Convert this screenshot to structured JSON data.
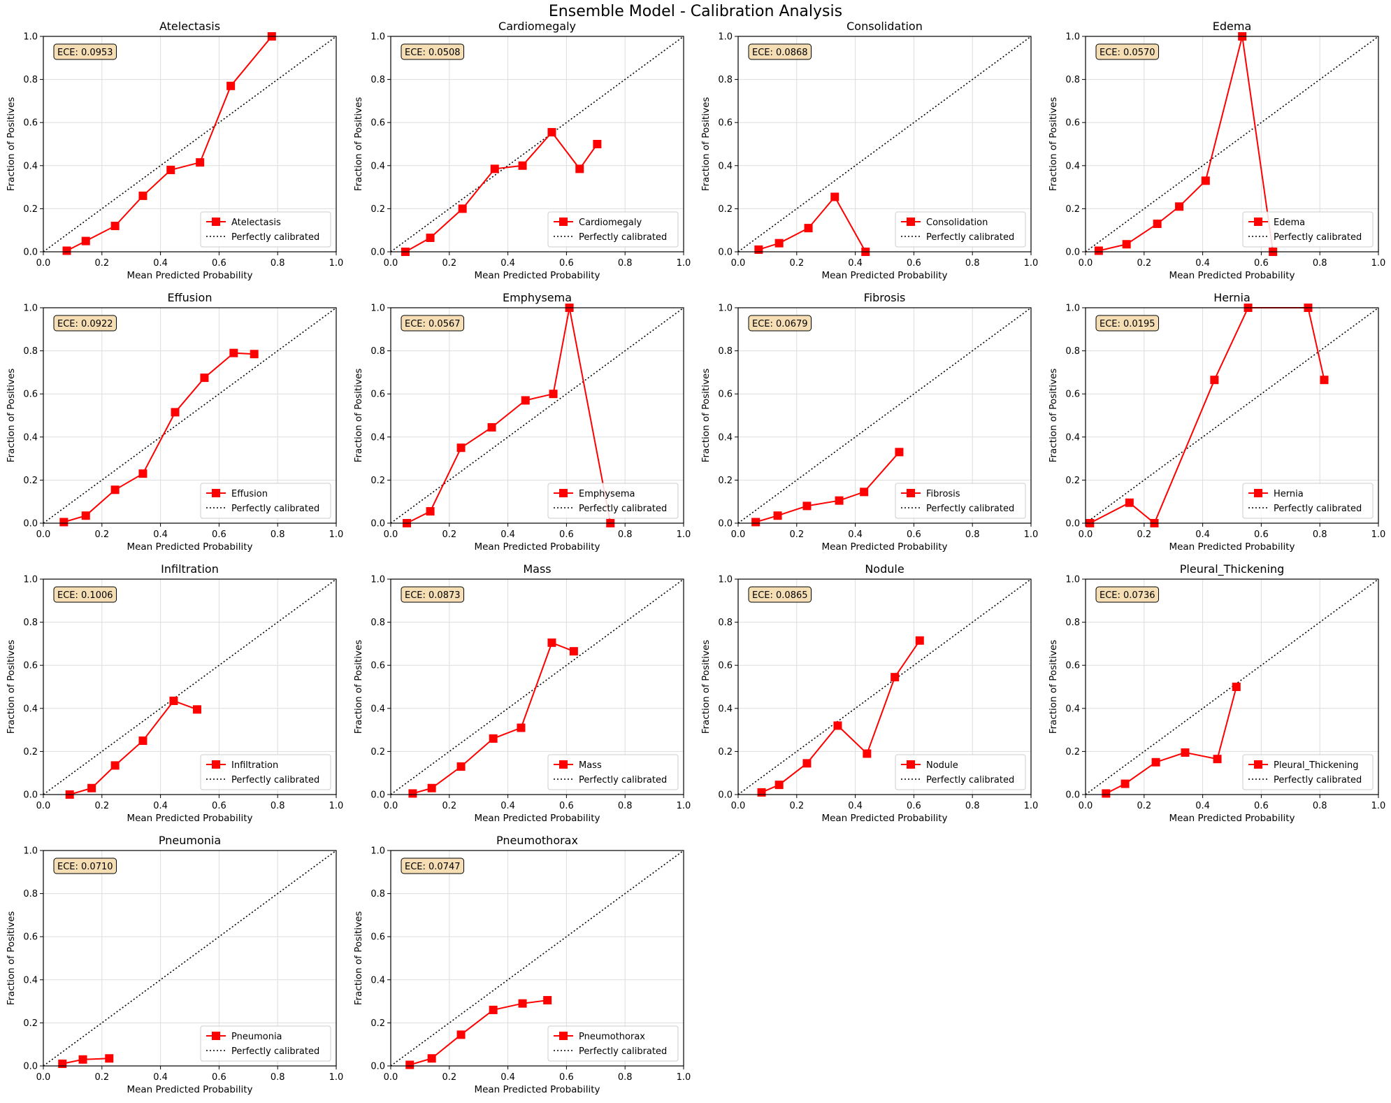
{
  "figure": {
    "suptitle": "Ensemble Model - Calibration Analysis"
  },
  "colors": {
    "series": "#ff0000",
    "reference": "#000000",
    "ece_box_fill": "#f5deb3",
    "grid": "#dddddd"
  },
  "chart_data": [
    {
      "type": "line",
      "title": "Atelectasis",
      "ece": "ECE: 0.0953",
      "xlabel": "Mean Predicted Probability",
      "ylabel": "Fraction of Positives",
      "xlim": [
        0,
        1
      ],
      "ylim": [
        0,
        1
      ],
      "xticks": [
        "0.0",
        "0.2",
        "0.4",
        "0.6",
        "0.8",
        "1.0"
      ],
      "yticks": [
        "0.0",
        "0.2",
        "0.4",
        "0.6",
        "0.8",
        "1.0"
      ],
      "grid": true,
      "legend_position": "lower-right",
      "legend": [
        "Atelectasis",
        "Perfectly calibrated"
      ],
      "x": [
        0.08,
        0.145,
        0.245,
        0.34,
        0.435,
        0.535,
        0.64,
        0.78
      ],
      "y": [
        0.005,
        0.05,
        0.12,
        0.26,
        0.38,
        0.415,
        0.77,
        1.0
      ]
    },
    {
      "type": "line",
      "title": "Cardiomegaly",
      "ece": "ECE: 0.0508",
      "xlabel": "Mean Predicted Probability",
      "ylabel": "Fraction of Positives",
      "xlim": [
        0,
        1
      ],
      "ylim": [
        0,
        1
      ],
      "xticks": [
        "0.0",
        "0.2",
        "0.4",
        "0.6",
        "0.8",
        "1.0"
      ],
      "yticks": [
        "0.0",
        "0.2",
        "0.4",
        "0.6",
        "0.8",
        "1.0"
      ],
      "grid": true,
      "legend_position": "lower-right",
      "legend": [
        "Cardiomegaly",
        "Perfectly calibrated"
      ],
      "x": [
        0.05,
        0.135,
        0.245,
        0.355,
        0.45,
        0.55,
        0.645,
        0.705
      ],
      "y": [
        0.0,
        0.065,
        0.2,
        0.385,
        0.4,
        0.555,
        0.385,
        0.5
      ]
    },
    {
      "type": "line",
      "title": "Consolidation",
      "ece": "ECE: 0.0868",
      "xlabel": "Mean Predicted Probability",
      "ylabel": "Fraction of Positives",
      "xlim": [
        0,
        1
      ],
      "ylim": [
        0,
        1
      ],
      "xticks": [
        "0.0",
        "0.2",
        "0.4",
        "0.6",
        "0.8",
        "1.0"
      ],
      "yticks": [
        "0.0",
        "0.2",
        "0.4",
        "0.6",
        "0.8",
        "1.0"
      ],
      "grid": true,
      "legend_position": "lower-right",
      "legend": [
        "Consolidation",
        "Perfectly calibrated"
      ],
      "x": [
        0.07,
        0.14,
        0.24,
        0.33,
        0.435
      ],
      "y": [
        0.01,
        0.04,
        0.11,
        0.255,
        0.0
      ]
    },
    {
      "type": "line",
      "title": "Edema",
      "ece": "ECE: 0.0570",
      "xlabel": "Mean Predicted Probability",
      "ylabel": "Fraction of Positives",
      "xlim": [
        0,
        1
      ],
      "ylim": [
        0,
        1
      ],
      "xticks": [
        "0.0",
        "0.2",
        "0.4",
        "0.6",
        "0.8",
        "1.0"
      ],
      "yticks": [
        "0.0",
        "0.2",
        "0.4",
        "0.6",
        "0.8",
        "1.0"
      ],
      "grid": true,
      "legend_position": "lower-right",
      "legend": [
        "Edema",
        "Perfectly calibrated"
      ],
      "x": [
        0.045,
        0.14,
        0.245,
        0.32,
        0.41,
        0.535,
        0.64
      ],
      "y": [
        0.005,
        0.035,
        0.13,
        0.21,
        0.33,
        1.0,
        0.0
      ]
    },
    {
      "type": "line",
      "title": "Effusion",
      "ece": "ECE: 0.0922",
      "xlabel": "Mean Predicted Probability",
      "ylabel": "Fraction of Positives",
      "xlim": [
        0,
        1
      ],
      "ylim": [
        0,
        1
      ],
      "xticks": [
        "0.0",
        "0.2",
        "0.4",
        "0.6",
        "0.8",
        "1.0"
      ],
      "yticks": [
        "0.0",
        "0.2",
        "0.4",
        "0.6",
        "0.8",
        "1.0"
      ],
      "grid": true,
      "legend_position": "lower-right",
      "legend": [
        "Effusion",
        "Perfectly calibrated"
      ],
      "x": [
        0.07,
        0.145,
        0.245,
        0.34,
        0.45,
        0.55,
        0.65,
        0.72
      ],
      "y": [
        0.005,
        0.035,
        0.155,
        0.23,
        0.515,
        0.675,
        0.79,
        0.785
      ]
    },
    {
      "type": "line",
      "title": "Emphysema",
      "ece": "ECE: 0.0567",
      "xlabel": "Mean Predicted Probability",
      "ylabel": "Fraction of Positives",
      "xlim": [
        0,
        1
      ],
      "ylim": [
        0,
        1
      ],
      "xticks": [
        "0.0",
        "0.2",
        "0.4",
        "0.6",
        "0.8",
        "1.0"
      ],
      "yticks": [
        "0.0",
        "0.2",
        "0.4",
        "0.6",
        "0.8",
        "1.0"
      ],
      "grid": true,
      "legend_position": "lower-right",
      "legend": [
        "Emphysema",
        "Perfectly calibrated"
      ],
      "x": [
        0.055,
        0.135,
        0.24,
        0.345,
        0.46,
        0.555,
        0.61,
        0.75
      ],
      "y": [
        0.0,
        0.055,
        0.35,
        0.445,
        0.57,
        0.6,
        1.0,
        0.0
      ]
    },
    {
      "type": "line",
      "title": "Fibrosis",
      "ece": "ECE: 0.0679",
      "xlabel": "Mean Predicted Probability",
      "ylabel": "Fraction of Positives",
      "xlim": [
        0,
        1
      ],
      "ylim": [
        0,
        1
      ],
      "xticks": [
        "0.0",
        "0.2",
        "0.4",
        "0.6",
        "0.8",
        "1.0"
      ],
      "yticks": [
        "0.0",
        "0.2",
        "0.4",
        "0.6",
        "0.8",
        "1.0"
      ],
      "grid": true,
      "legend_position": "lower-right",
      "legend": [
        "Fibrosis",
        "Perfectly calibrated"
      ],
      "x": [
        0.06,
        0.135,
        0.235,
        0.345,
        0.43,
        0.55
      ],
      "y": [
        0.005,
        0.035,
        0.08,
        0.105,
        0.145,
        0.33
      ]
    },
    {
      "type": "line",
      "title": "Hernia",
      "ece": "ECE: 0.0195",
      "xlabel": "Mean Predicted Probability",
      "ylabel": "Fraction of Positives",
      "xlim": [
        0,
        1
      ],
      "ylim": [
        0,
        1
      ],
      "xticks": [
        "0.0",
        "0.2",
        "0.4",
        "0.6",
        "0.8",
        "1.0"
      ],
      "yticks": [
        "0.0",
        "0.2",
        "0.4",
        "0.6",
        "0.8",
        "1.0"
      ],
      "grid": true,
      "legend_position": "lower-right",
      "legend": [
        "Hernia",
        "Perfectly calibrated"
      ],
      "x": [
        0.015,
        0.15,
        0.235,
        0.44,
        0.555,
        0.76,
        0.815
      ],
      "y": [
        0.0,
        0.095,
        0.0,
        0.665,
        1.0,
        1.0,
        0.665
      ]
    },
    {
      "type": "line",
      "title": "Infiltration",
      "ece": "ECE: 0.1006",
      "xlabel": "Mean Predicted Probability",
      "ylabel": "Fraction of Positives",
      "xlim": [
        0,
        1
      ],
      "ylim": [
        0,
        1
      ],
      "xticks": [
        "0.0",
        "0.2",
        "0.4",
        "0.6",
        "0.8",
        "1.0"
      ],
      "yticks": [
        "0.0",
        "0.2",
        "0.4",
        "0.6",
        "0.8",
        "1.0"
      ],
      "grid": true,
      "legend_position": "lower-right",
      "legend": [
        "Infiltration",
        "Perfectly calibrated"
      ],
      "x": [
        0.09,
        0.165,
        0.245,
        0.34,
        0.445,
        0.525
      ],
      "y": [
        0.0,
        0.03,
        0.135,
        0.25,
        0.435,
        0.395
      ]
    },
    {
      "type": "line",
      "title": "Mass",
      "ece": "ECE: 0.0873",
      "xlabel": "Mean Predicted Probability",
      "ylabel": "Fraction of Positives",
      "xlim": [
        0,
        1
      ],
      "ylim": [
        0,
        1
      ],
      "xticks": [
        "0.0",
        "0.2",
        "0.4",
        "0.6",
        "0.8",
        "1.0"
      ],
      "yticks": [
        "0.0",
        "0.2",
        "0.4",
        "0.6",
        "0.8",
        "1.0"
      ],
      "grid": true,
      "legend_position": "lower-right",
      "legend": [
        "Mass",
        "Perfectly calibrated"
      ],
      "x": [
        0.075,
        0.14,
        0.24,
        0.35,
        0.445,
        0.55,
        0.625
      ],
      "y": [
        0.005,
        0.03,
        0.13,
        0.26,
        0.31,
        0.705,
        0.665
      ]
    },
    {
      "type": "line",
      "title": "Nodule",
      "ece": "ECE: 0.0865",
      "xlabel": "Mean Predicted Probability",
      "ylabel": "Fraction of Positives",
      "xlim": [
        0,
        1
      ],
      "ylim": [
        0,
        1
      ],
      "xticks": [
        "0.0",
        "0.2",
        "0.4",
        "0.6",
        "0.8",
        "1.0"
      ],
      "yticks": [
        "0.0",
        "0.2",
        "0.4",
        "0.6",
        "0.8",
        "1.0"
      ],
      "grid": true,
      "legend_position": "lower-right",
      "legend": [
        "Nodule",
        "Perfectly calibrated"
      ],
      "x": [
        0.08,
        0.14,
        0.235,
        0.34,
        0.44,
        0.535,
        0.62
      ],
      "y": [
        0.01,
        0.045,
        0.145,
        0.32,
        0.19,
        0.545,
        0.715
      ]
    },
    {
      "type": "line",
      "title": "Pleural_Thickening",
      "ece": "ECE: 0.0736",
      "xlabel": "Mean Predicted Probability",
      "ylabel": "Fraction of Positives",
      "xlim": [
        0,
        1
      ],
      "ylim": [
        0,
        1
      ],
      "xticks": [
        "0.0",
        "0.2",
        "0.4",
        "0.6",
        "0.8",
        "1.0"
      ],
      "yticks": [
        "0.0",
        "0.2",
        "0.4",
        "0.6",
        "0.8",
        "1.0"
      ],
      "grid": true,
      "legend_position": "lower-right",
      "legend": [
        "Pleural_Thickening",
        "Perfectly calibrated"
      ],
      "x": [
        0.07,
        0.135,
        0.24,
        0.34,
        0.45,
        0.515
      ],
      "y": [
        0.005,
        0.05,
        0.15,
        0.195,
        0.165,
        0.5
      ]
    },
    {
      "type": "line",
      "title": "Pneumonia",
      "ece": "ECE: 0.0710",
      "xlabel": "Mean Predicted Probability",
      "ylabel": "Fraction of Positives",
      "xlim": [
        0,
        1
      ],
      "ylim": [
        0,
        1
      ],
      "xticks": [
        "0.0",
        "0.2",
        "0.4",
        "0.6",
        "0.8",
        "1.0"
      ],
      "yticks": [
        "0.0",
        "0.2",
        "0.4",
        "0.6",
        "0.8",
        "1.0"
      ],
      "grid": true,
      "legend_position": "lower-right",
      "legend": [
        "Pneumonia",
        "Perfectly calibrated"
      ],
      "x": [
        0.065,
        0.135,
        0.225
      ],
      "y": [
        0.01,
        0.03,
        0.035
      ]
    },
    {
      "type": "line",
      "title": "Pneumothorax",
      "ece": "ECE: 0.0747",
      "xlabel": "Mean Predicted Probability",
      "ylabel": "Fraction of Positives",
      "xlim": [
        0,
        1
      ],
      "ylim": [
        0,
        1
      ],
      "xticks": [
        "0.0",
        "0.2",
        "0.4",
        "0.6",
        "0.8",
        "1.0"
      ],
      "yticks": [
        "0.0",
        "0.2",
        "0.4",
        "0.6",
        "0.8",
        "1.0"
      ],
      "grid": true,
      "legend_position": "lower-right",
      "legend": [
        "Pneumothorax",
        "Perfectly calibrated"
      ],
      "x": [
        0.065,
        0.14,
        0.24,
        0.35,
        0.45,
        0.535
      ],
      "y": [
        0.005,
        0.035,
        0.145,
        0.26,
        0.29,
        0.305
      ]
    }
  ]
}
